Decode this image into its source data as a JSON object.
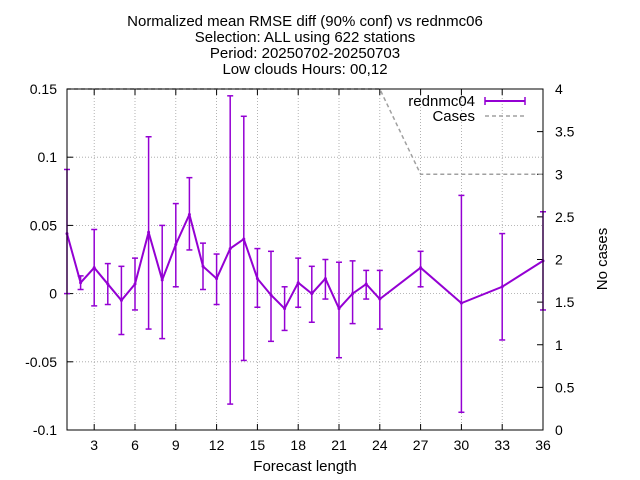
{
  "chart_data": {
    "type": "line",
    "title_lines": [
      "Normalized mean RMSE diff (90% conf) vs rednmc06",
      "Selection: ALL using   622 stations",
      "Period: 20250702-20250703",
      "Low clouds   Hours: 00,12"
    ],
    "xlabel": "Forecast length",
    "ylabel": "",
    "y2label": "No cases",
    "xlim": [
      1,
      36
    ],
    "ylim": [
      -0.1,
      0.15
    ],
    "y2lim": [
      0,
      4
    ],
    "xticks": [
      3,
      6,
      9,
      12,
      15,
      18,
      21,
      24,
      27,
      30,
      33,
      36
    ],
    "yticks": [
      -0.1,
      -0.05,
      0,
      0.05,
      0.1,
      0.15
    ],
    "ytick_labels": [
      "-0.1",
      "-0.05",
      "0",
      "0.05",
      "0.1",
      "0.15"
    ],
    "y2ticks": [
      0,
      0.5,
      1,
      1.5,
      2,
      2.5,
      3,
      3.5,
      4
    ],
    "y2tick_labels": [
      "0",
      "0.5",
      "1",
      "1.5",
      "2",
      "2.5",
      "3",
      "3.5",
      "4"
    ],
    "grid": true,
    "legend_position": "top-right",
    "series": [
      {
        "name": "rednmc04",
        "color": "#9400d3",
        "style": "line-with-errorbars",
        "points": [
          {
            "x": 1,
            "y": 0.044,
            "lo": 0.0,
            "hi": 0.091
          },
          {
            "x": 2,
            "y": 0.008,
            "lo": 0.003,
            "hi": 0.013
          },
          {
            "x": 3,
            "y": 0.019,
            "lo": -0.009,
            "hi": 0.047
          },
          {
            "x": 4,
            "y": 0.007,
            "lo": -0.008,
            "hi": 0.022
          },
          {
            "x": 5,
            "y": -0.005,
            "lo": -0.03,
            "hi": 0.02
          },
          {
            "x": 6,
            "y": 0.007,
            "lo": -0.012,
            "hi": 0.026
          },
          {
            "x": 7,
            "y": 0.045,
            "lo": -0.026,
            "hi": 0.115
          },
          {
            "x": 8,
            "y": 0.01,
            "lo": -0.033,
            "hi": 0.05
          },
          {
            "x": 9,
            "y": 0.036,
            "lo": 0.005,
            "hi": 0.066
          },
          {
            "x": 10,
            "y": 0.058,
            "lo": 0.032,
            "hi": 0.085
          },
          {
            "x": 11,
            "y": 0.02,
            "lo": 0.003,
            "hi": 0.037
          },
          {
            "x": 12,
            "y": 0.011,
            "lo": -0.008,
            "hi": 0.029
          },
          {
            "x": 13,
            "y": 0.033,
            "lo": -0.081,
            "hi": 0.145
          },
          {
            "x": 14,
            "y": 0.04,
            "lo": -0.049,
            "hi": 0.13
          },
          {
            "x": 15,
            "y": 0.011,
            "lo": -0.01,
            "hi": 0.033
          },
          {
            "x": 16,
            "y": -0.001,
            "lo": -0.035,
            "hi": 0.031
          },
          {
            "x": 17,
            "y": -0.011,
            "lo": -0.027,
            "hi": 0.005
          },
          {
            "x": 18,
            "y": 0.008,
            "lo": -0.01,
            "hi": 0.026
          },
          {
            "x": 19,
            "y": 0.0,
            "lo": -0.021,
            "hi": 0.02
          },
          {
            "x": 20,
            "y": 0.011,
            "lo": -0.004,
            "hi": 0.025
          },
          {
            "x": 21,
            "y": -0.011,
            "lo": -0.047,
            "hi": 0.023
          },
          {
            "x": 22,
            "y": 0.0,
            "lo": -0.022,
            "hi": 0.024
          },
          {
            "x": 23,
            "y": 0.007,
            "lo": -0.004,
            "hi": 0.017
          },
          {
            "x": 24,
            "y": -0.004,
            "lo": -0.026,
            "hi": 0.017
          },
          {
            "x": 27,
            "y": 0.019,
            "lo": 0.005,
            "hi": 0.031
          },
          {
            "x": 30,
            "y": -0.007,
            "lo": -0.087,
            "hi": 0.072
          },
          {
            "x": 33,
            "y": 0.005,
            "lo": -0.034,
            "hi": 0.044
          },
          {
            "x": 36,
            "y": 0.024,
            "lo": -0.012,
            "hi": 0.06
          }
        ]
      },
      {
        "name": "Cases",
        "color": "#a0a0a0",
        "style": "dashed",
        "axis": "y2",
        "x": [
          1,
          24,
          27,
          36
        ],
        "y": [
          4,
          4,
          3,
          3
        ]
      }
    ]
  }
}
